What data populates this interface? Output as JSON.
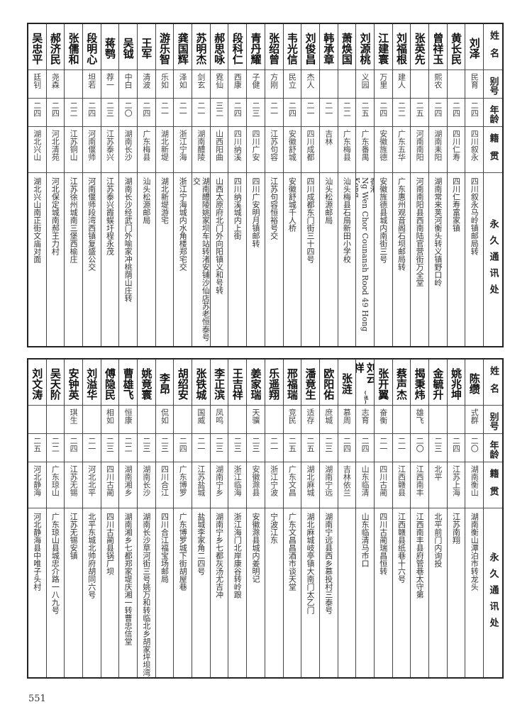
{
  "headers": {
    "name": "姓名",
    "alias": "别号",
    "age": "年龄",
    "origin": "籍贯",
    "address": "永久通讯处"
  },
  "top_table": [
    {
      "name": "刘泽",
      "alias": "民育",
      "age": "二四",
      "origin": "四川叙永",
      "address": "四川叙永马岭镇邮局转"
    },
    {
      "name": "黄长民",
      "alias": "",
      "age": "二四",
      "origin": "四川仁寿",
      "address": "四川仁寿富家镇"
    },
    {
      "name": "曾祥玉",
      "alias": "熙农",
      "age": "二四",
      "origin": "湖南耒阳",
      "address": "湖南常来荚河衡头转义镇野口岭"
    },
    {
      "name": "张英先",
      "alias": "",
      "age": "二五",
      "origin": "河南南阳",
      "address": "河南南阳县西南陆官营街万全堂"
    },
    {
      "name": "刘福根",
      "alias": "建人",
      "age": "二二",
      "origin": "广东五华",
      "address": "广东惠州观音阁石坝邮局转"
    },
    {
      "name": "江建寰",
      "alias": "万里",
      "age": "二四",
      "origin": "安徽旌德",
      "address": "安徽旌德县城内南街三号"
    },
    {
      "name": "刘源桃",
      "alias": "义园",
      "age": "二五",
      "origin": "广东番禺",
      "address": "香港",
      "address_latin": "Ng Wen Chor Counansh Rood 49 Hong Kong"
    },
    {
      "name": "萧焕国",
      "alias": "",
      "age": "二二",
      "origin": "广东梅县",
      "address": "汕头梅县石扇新田小学校"
    },
    {
      "name": "韩承章",
      "alias": "",
      "age": "二一",
      "origin": "吉林",
      "address": "汕头松源邮局"
    },
    {
      "name": "刘俊昌",
      "alias": "杰人",
      "age": "二一",
      "origin": "四川成都",
      "address": "四川成都东门街三十四号"
    },
    {
      "name": "韦光信",
      "alias": "民立",
      "age": "二四",
      "origin": "安徽舒城",
      "address": "安徽舒城千人桥"
    },
    {
      "name": "张绍曾",
      "alias": "方刚",
      "age": "二一",
      "origin": "江苏句容",
      "address": "江苏句容恒裕号交"
    },
    {
      "name": "青丹耀",
      "alias": "子健",
      "age": "二三",
      "origin": "四川广安",
      "address": "四川广安明月镇邮转"
    },
    {
      "name": "段科仁",
      "alias": "西康",
      "age": "二四",
      "origin": "四川纳溪",
      "address": "四川纳溪城内上街"
    },
    {
      "name": "郝思咏",
      "alias": "霓仙",
      "age": "三二",
      "origin": "山西阳曲",
      "address": "山西太原府北门外向阳镇义和号转"
    },
    {
      "name": "苏明杰",
      "alias": "剑玄",
      "age": "二一",
      "origin": "湖南醴陵",
      "address": "湖南醴陵姚家坝车站转渚安铺沙仙店苏老恒泰号交"
    },
    {
      "name": "龚国辉",
      "alias": "泽如",
      "age": "二一",
      "origin": "浙江宁海",
      "address": "浙江宁海城内水角楼郑宅交"
    },
    {
      "name": "游乐智",
      "alias": "乐如",
      "age": "二一",
      "origin": "湖北新堤",
      "address": "湖北新堤游宅"
    },
    {
      "name": "王军",
      "alias": "清波",
      "age": "二四",
      "origin": "广东梅县",
      "address": "汕头松源邮局"
    },
    {
      "name": "吴钺",
      "alias": "中白",
      "age": "二〇",
      "origin": "湖南长沙",
      "address": "湖南长沙经武门外喻家冲桃荫山庄转"
    },
    {
      "name": "蒋鹗",
      "alias": "荐一",
      "age": "二三",
      "origin": "江苏泰兴",
      "address": "江苏泰兴霞蜈圩程永茂"
    },
    {
      "name": "段明心",
      "alias": "坦若",
      "age": "二四",
      "origin": "河南偃师",
      "address": "河南偃师段湾西镇复盛公交"
    },
    {
      "name": "张儒和",
      "alias": "",
      "age": "二二",
      "origin": "江苏铜山",
      "address": "江苏徐州城南三堡西榆庄"
    },
    {
      "name": "郝济民",
      "alias": "尧森",
      "age": "二四",
      "origin": "河北清苑",
      "address": "河北保定城南郝王力村"
    },
    {
      "name": "吴忠平",
      "alias": "廷钊",
      "age": "二四",
      "origin": "湖北兴山",
      "address": "湖北兴山南正街文庙对面"
    }
  ],
  "bottom_table": [
    {
      "name": "陈缵",
      "alias": "式群",
      "age": "二〇",
      "origin": "湖南衡山",
      "address": "湖南衡山潭泊市转龙头"
    },
    {
      "name": "姚兆坤",
      "alias": "",
      "age": "二四",
      "origin": "江苏上海",
      "address": "江苏南翔"
    },
    {
      "name": "金毓升",
      "alias": "",
      "age": "二三",
      "origin": "北平",
      "address": "北平前门内询投"
    },
    {
      "name": "揭秉炜",
      "alias": "雄飞",
      "age": "二〇",
      "origin": "江西南丰",
      "address": "江西南丰县府管巷太守第"
    },
    {
      "name": "蔡声杰",
      "alias": "",
      "age": "二一",
      "origin": "江西赣县",
      "address": "江西赣县纸巷十六号"
    },
    {
      "name": "张开翼",
      "alias": "奋衡",
      "age": "二一",
      "origin": "四川古蔺",
      "address": "四川古蔺瑞昌恒转"
    },
    {
      "name": "刘云祥",
      "name_note": "(讯)",
      "alias": "志育",
      "age": "二四",
      "origin": "山东临清",
      "address": "山东临清马市口"
    },
    {
      "name": "张涟",
      "alias": "慕周",
      "age": "二四",
      "origin": "吉林依兰",
      "address": ""
    },
    {
      "name": "欧阳佑",
      "alias": "庶城",
      "age": "二三",
      "origin": "湖南宁远",
      "address": "湖南宁远县西乡慕投村三泰号"
    },
    {
      "name": "潘竟生",
      "alias": "适存",
      "age": "二五",
      "origin": "湖北麻城",
      "address": "湖北麻城岐亭镇大南门太乙门"
    },
    {
      "name": "邢福瑞",
      "alias": "竞民",
      "age": "二五",
      "origin": "广东文昌",
      "address": "广东文昌昌酒市谈天堂"
    },
    {
      "name": "乐遥翔",
      "alias": "",
      "age": "二一",
      "origin": "浙江宁波",
      "address": "宁波江东"
    },
    {
      "name": "姜家瑞",
      "alias": "天骥",
      "age": "二三",
      "origin": "安徽滁县",
      "address": "安徽滁县城内姜明记"
    },
    {
      "name": "王吉祥",
      "alias": "",
      "age": "二三",
      "origin": "浙江临海",
      "address": "浙江海门北岸康谷转岭跟"
    },
    {
      "name": "李正滨",
      "alias": "凤鸣",
      "age": "二三",
      "origin": "湖南宁乡",
      "address": "湖南宁乡七都灰汤尤吉冲"
    },
    {
      "name": "张铁城",
      "alias": "国威",
      "age": "二一",
      "origin": "江苏盐城",
      "address": "盐城李家角二四号"
    },
    {
      "name": "胡绍安",
      "alias": "",
      "age": "二四",
      "origin": "广东博罗",
      "address": "广东博罗城下街胡屋巷"
    },
    {
      "name": "李昂",
      "alias": "侃如",
      "age": "二三",
      "origin": "四川合江",
      "address": "四川合江福宝场邮局"
    },
    {
      "name": "姚竟寰",
      "alias": "",
      "age": "二三",
      "origin": "湖南长沙",
      "address": "湖南长沙草河街三号姚万和转临北乡胡家坪坝湾"
    },
    {
      "name": "曹雄飞",
      "alias": "恒康",
      "age": "二二",
      "origin": "湖南湘乡",
      "address": "湖南湘乡七都郑家堤庆湘一转曹忠信堂"
    },
    {
      "name": "傅隐民",
      "alias": "相如",
      "age": "二三",
      "origin": "四川古蔺",
      "address": "四川古蔺县锅厂坝"
    },
    {
      "name": "刘溢华",
      "alias": "",
      "age": "二一",
      "origin": "河北北平",
      "address": "北平东城北帅府胡同六号"
    },
    {
      "name": "安钟英",
      "alias": "琪生",
      "age": "二四",
      "origin": "江苏无锡",
      "address": "江苏无锡安镇"
    },
    {
      "name": "吴天阶",
      "alias": "",
      "age": "二二",
      "origin": "广东琼山",
      "address": "广东琼山县城忠介路一八九号"
    },
    {
      "name": "刘文涛",
      "alias": "",
      "age": "二五",
      "origin": "河北静海",
      "address": "河北静海县中唯子头村"
    }
  ],
  "page_number": "551"
}
